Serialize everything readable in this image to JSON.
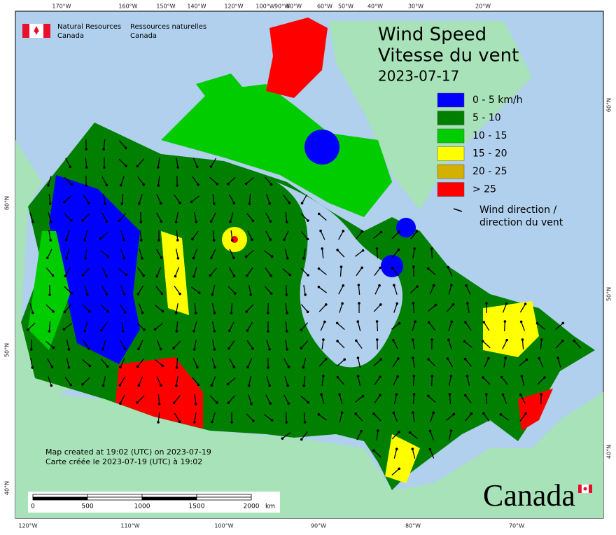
{
  "header": {
    "title_en": "Wind Speed",
    "title_fr": "Vitesse du vent",
    "date": "2023-07-17"
  },
  "agency": {
    "en": [
      "Natural Resources",
      "Canada"
    ],
    "fr": [
      "Ressources naturelles",
      "Canada"
    ]
  },
  "legend": {
    "items": [
      {
        "label": "0 - 5 km/h",
        "color": "#0000ff"
      },
      {
        "label": "5 - 10",
        "color": "#007f00"
      },
      {
        "label": "10 - 15",
        "color": "#00cc00"
      },
      {
        "label": "15 - 20",
        "color": "#ffff00"
      },
      {
        "label": "20 - 25",
        "color": "#d4b000"
      },
      {
        "label": "> 25",
        "color": "#ff0000"
      }
    ],
    "direction": [
      "Wind direction /",
      "direction du vent"
    ]
  },
  "graticule": {
    "top": [
      "170°W",
      "160°W",
      "150°W",
      "140°W",
      "120°W",
      "100°W",
      "90°W",
      "80°W",
      "60°W",
      "50°W",
      "40°W",
      "30°W",
      "20°W"
    ],
    "bottom": [
      "120°W",
      "110°W",
      "100°W",
      "90°W",
      "80°W",
      "70°W"
    ],
    "left": [
      "60°N",
      "50°N",
      "40°N"
    ],
    "right": [
      "60°N",
      "50°N",
      "40°N"
    ]
  },
  "scale_bar": {
    "labels": [
      "0",
      "500",
      "1000",
      "1500",
      "2000"
    ],
    "unit": "km"
  },
  "credits": [
    "Map created at 19:02 (UTC) on 2023-07-19",
    "Carte créée le 2023-07-19 (UTC) à 19:02"
  ],
  "wordmark": "Canada"
}
